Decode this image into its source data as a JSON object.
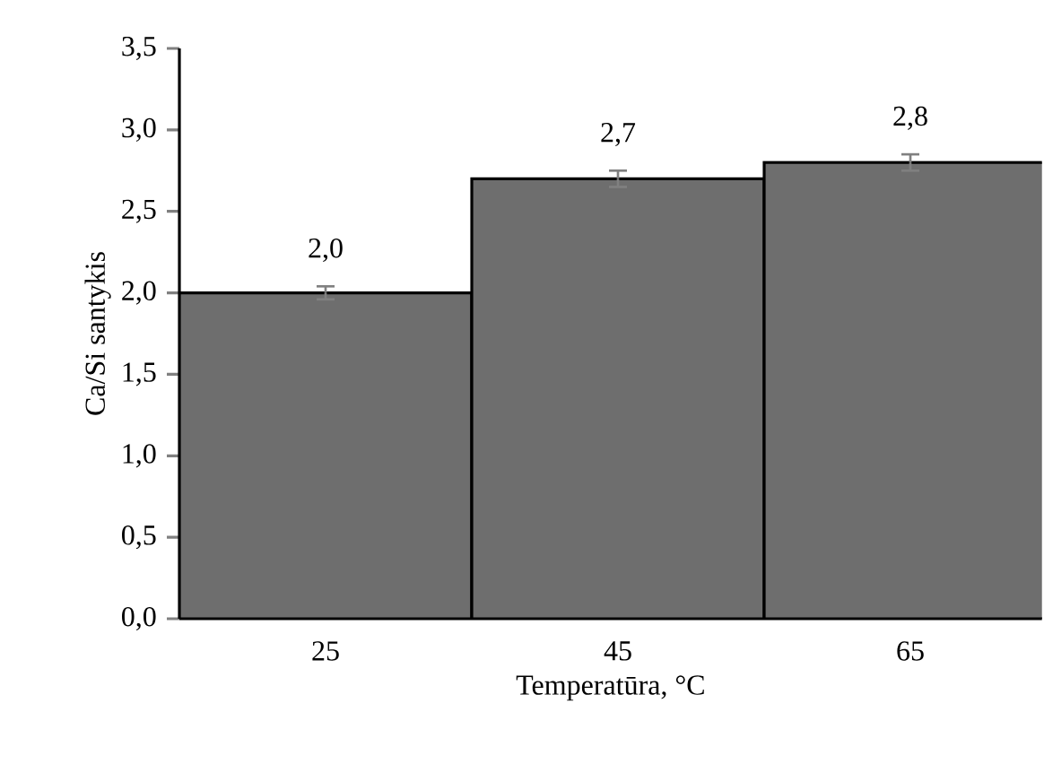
{
  "chart_data": {
    "type": "bar",
    "xlabel": "Temperatūra, °C",
    "ylabel": "Ca/Si santykis",
    "categories": [
      "25",
      "45",
      "65"
    ],
    "values": [
      2.0,
      2.7,
      2.8
    ],
    "errors": [
      0.04,
      0.05,
      0.05
    ],
    "value_labels": [
      "2,0",
      "2,7",
      "2,8"
    ],
    "color": "#6e6e6e",
    "ylim": [
      0,
      3.5
    ],
    "yticks": [
      {
        "value": 0,
        "label": "0,0"
      },
      {
        "value": 0.5,
        "label": "0,5"
      },
      {
        "value": 1,
        "label": "1,0"
      },
      {
        "value": 1.5,
        "label": "1,5"
      },
      {
        "value": 2,
        "label": "2,0"
      },
      {
        "value": 2.5,
        "label": "2,5"
      },
      {
        "value": 3,
        "label": "3,0"
      },
      {
        "value": 3.5,
        "label": "3,5"
      }
    ],
    "grid": false
  }
}
